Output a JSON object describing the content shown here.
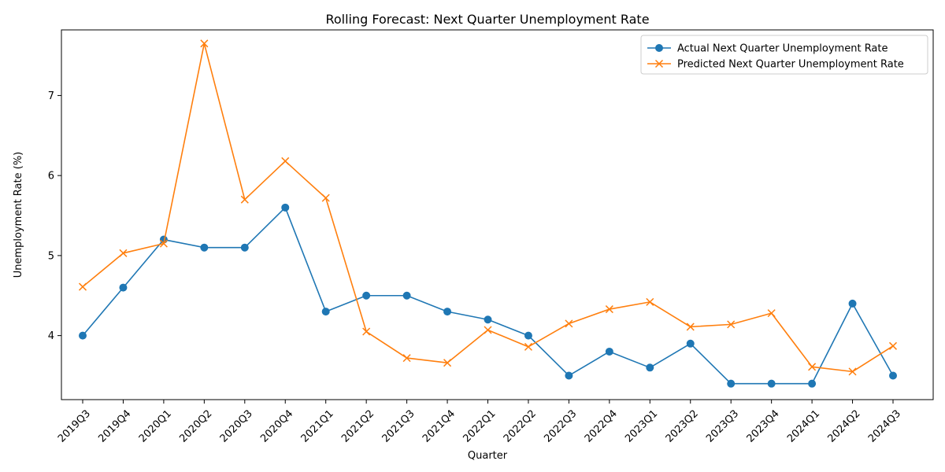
{
  "chart_data": {
    "type": "line",
    "title": "Rolling Forecast: Next Quarter Unemployment Rate",
    "xlabel": "Quarter",
    "ylabel": "Unemployment Rate (%)",
    "categories": [
      "2019Q3",
      "2019Q4",
      "2020Q1",
      "2020Q2",
      "2020Q3",
      "2020Q4",
      "2021Q1",
      "2021Q2",
      "2021Q3",
      "2021Q4",
      "2022Q1",
      "2022Q2",
      "2022Q3",
      "2022Q4",
      "2023Q1",
      "2023Q2",
      "2023Q3",
      "2023Q4",
      "2024Q1",
      "2024Q2",
      "2024Q3"
    ],
    "ylim": [
      3.2,
      7.82
    ],
    "yticks": [
      4,
      5,
      6,
      7
    ],
    "grid": false,
    "legend_position": "top-right",
    "series": [
      {
        "name": "Actual Next Quarter Unemployment Rate",
        "color": "#1f77b4",
        "marker": "circle",
        "values": [
          4.0,
          4.6,
          5.2,
          5.1,
          5.1,
          5.6,
          4.3,
          4.5,
          4.5,
          4.3,
          4.2,
          4.0,
          3.5,
          3.8,
          3.6,
          3.9,
          3.4,
          3.4,
          3.4,
          4.4,
          3.5
        ]
      },
      {
        "name": "Predicted Next Quarter Unemployment Rate",
        "color": "#ff7f0e",
        "marker": "x",
        "values": [
          4.61,
          5.03,
          5.15,
          7.65,
          5.7,
          6.18,
          5.72,
          4.05,
          3.72,
          3.66,
          4.07,
          3.86,
          4.15,
          4.33,
          4.42,
          4.11,
          4.14,
          4.28,
          3.61,
          3.55,
          3.87
        ]
      }
    ]
  }
}
